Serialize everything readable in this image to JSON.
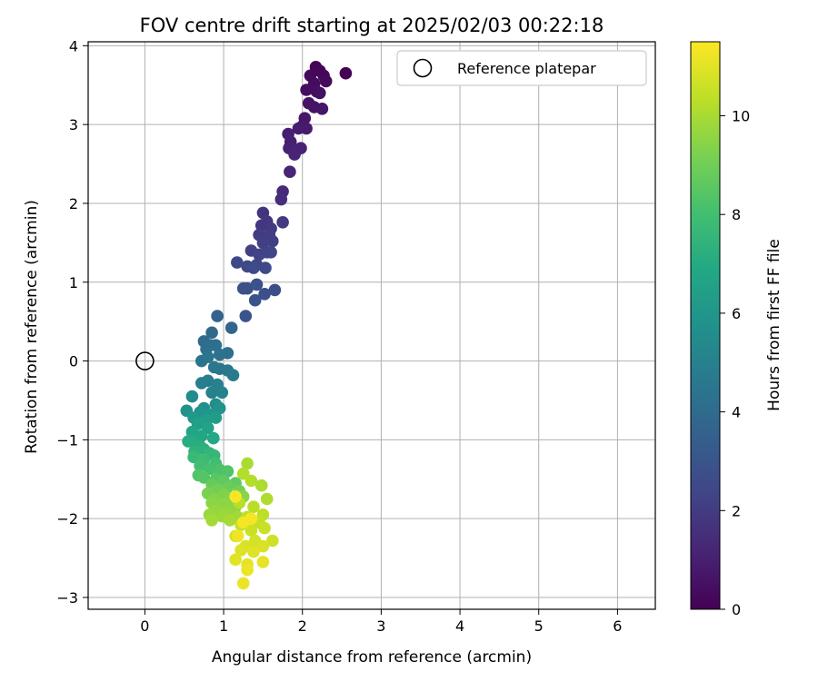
{
  "chart_data": {
    "type": "scatter",
    "title": "FOV centre drift starting at 2025/02/03 00:22:18",
    "xlabel": "Angular distance from reference (arcmin)",
    "ylabel": "Rotation from reference (arcmin)",
    "xlim": [
      -0.72,
      6.48
    ],
    "ylim": [
      -3.15,
      4.05
    ],
    "xticks": [
      0,
      1,
      2,
      3,
      4,
      5,
      6
    ],
    "yticks": [
      -3,
      -2,
      -1,
      0,
      1,
      2,
      3,
      4
    ],
    "grid": true,
    "legend": {
      "position": "top-right",
      "entries": [
        "Reference platepar"
      ]
    },
    "reference_point": {
      "x": 0,
      "y": 0,
      "label": "Reference platepar"
    },
    "colorbar": {
      "label": "Hours from first FF file",
      "range": [
        0,
        11.5
      ],
      "ticks": [
        0,
        2,
        4,
        6,
        8,
        10
      ],
      "colormap": "viridis"
    },
    "series": [
      {
        "points": [
          [
            2.55,
            3.65,
            0.05
          ],
          [
            2.17,
            3.73,
            0.1
          ],
          [
            2.22,
            3.68,
            0.15
          ],
          [
            2.27,
            3.62,
            0.2
          ],
          [
            2.1,
            3.62,
            0.25
          ],
          [
            2.3,
            3.55,
            0.3
          ],
          [
            2.15,
            3.52,
            0.35
          ],
          [
            2.05,
            3.44,
            0.4
          ],
          [
            2.18,
            3.42,
            0.45
          ],
          [
            2.22,
            3.4,
            0.5
          ],
          [
            2.08,
            3.27,
            0.55
          ],
          [
            2.15,
            3.22,
            0.6
          ],
          [
            2.25,
            3.2,
            0.65
          ],
          [
            2.03,
            3.08,
            0.7
          ],
          [
            2.0,
            2.98,
            0.8
          ],
          [
            2.05,
            2.95,
            0.85
          ],
          [
            1.95,
            2.95,
            0.9
          ],
          [
            1.82,
            2.88,
            0.95
          ],
          [
            1.85,
            2.78,
            1.0
          ],
          [
            1.83,
            2.7,
            1.05
          ],
          [
            1.98,
            2.7,
            1.1
          ],
          [
            1.9,
            2.62,
            1.15
          ],
          [
            1.84,
            2.4,
            1.2
          ],
          [
            1.75,
            2.15,
            1.4
          ],
          [
            1.73,
            2.05,
            1.5
          ],
          [
            1.5,
            1.88,
            1.7
          ],
          [
            1.55,
            1.77,
            1.8
          ],
          [
            1.48,
            1.72,
            1.85
          ],
          [
            1.6,
            1.68,
            1.9
          ],
          [
            1.75,
            1.76,
            1.95
          ],
          [
            1.45,
            1.6,
            2.0
          ],
          [
            1.58,
            1.6,
            2.05
          ],
          [
            1.62,
            1.52,
            2.1
          ],
          [
            1.5,
            1.5,
            2.15
          ],
          [
            1.35,
            1.4,
            2.2
          ],
          [
            1.55,
            1.38,
            2.25
          ],
          [
            1.45,
            1.35,
            2.3
          ],
          [
            1.6,
            1.38,
            2.35
          ],
          [
            1.42,
            1.22,
            2.4
          ],
          [
            1.53,
            1.18,
            2.45
          ],
          [
            1.3,
            1.2,
            2.5
          ],
          [
            1.17,
            1.25,
            2.55
          ],
          [
            1.38,
            1.18,
            2.6
          ],
          [
            1.65,
            0.9,
            2.7
          ],
          [
            1.52,
            0.85,
            2.75
          ],
          [
            1.25,
            0.92,
            2.8
          ],
          [
            1.3,
            0.92,
            2.85
          ],
          [
            1.42,
            0.97,
            2.9
          ],
          [
            1.4,
            0.77,
            2.95
          ],
          [
            1.28,
            0.57,
            3.0
          ],
          [
            0.92,
            0.57,
            3.6
          ],
          [
            1.1,
            0.42,
            3.7
          ],
          [
            0.85,
            0.36,
            3.9
          ],
          [
            0.75,
            0.25,
            4.0
          ],
          [
            0.83,
            0.2,
            4.1
          ],
          [
            0.9,
            0.2,
            4.15
          ],
          [
            0.78,
            0.15,
            4.2
          ],
          [
            1.05,
            0.1,
            4.25
          ],
          [
            0.95,
            0.08,
            4.3
          ],
          [
            0.72,
            0.0,
            4.4
          ],
          [
            0.8,
            0.05,
            4.45
          ],
          [
            0.95,
            -0.1,
            4.5
          ],
          [
            1.05,
            -0.12,
            4.55
          ],
          [
            0.88,
            -0.08,
            4.6
          ],
          [
            1.12,
            -0.18,
            4.7
          ],
          [
            0.8,
            -0.25,
            4.8
          ],
          [
            0.72,
            -0.28,
            4.85
          ],
          [
            0.92,
            -0.3,
            4.9
          ],
          [
            0.85,
            -0.4,
            5.0
          ],
          [
            0.98,
            -0.4,
            5.05
          ],
          [
            0.6,
            -0.45,
            5.5
          ],
          [
            0.9,
            -0.55,
            5.6
          ],
          [
            0.75,
            -0.6,
            5.7
          ],
          [
            0.95,
            -0.6,
            5.8
          ],
          [
            0.53,
            -0.63,
            5.85
          ],
          [
            0.7,
            -0.65,
            5.9
          ],
          [
            0.82,
            -0.68,
            6.0
          ],
          [
            0.62,
            -0.72,
            6.1
          ],
          [
            0.9,
            -0.72,
            6.3
          ],
          [
            0.78,
            -0.75,
            6.35
          ],
          [
            0.67,
            -0.8,
            6.5
          ],
          [
            0.8,
            -0.85,
            6.6
          ],
          [
            0.6,
            -0.9,
            6.7
          ],
          [
            0.72,
            -0.95,
            6.8
          ],
          [
            0.87,
            -0.98,
            6.9
          ],
          [
            0.6,
            -1.02,
            7.0
          ],
          [
            0.55,
            -1.02,
            7.1
          ],
          [
            0.7,
            -1.08,
            7.2
          ],
          [
            0.75,
            -1.12,
            7.3
          ],
          [
            0.63,
            -1.15,
            7.4
          ],
          [
            0.82,
            -1.17,
            7.5
          ],
          [
            0.88,
            -1.2,
            7.6
          ],
          [
            0.62,
            -1.22,
            7.7
          ],
          [
            0.75,
            -1.25,
            7.8
          ],
          [
            0.9,
            -1.3,
            7.9
          ],
          [
            0.7,
            -1.33,
            8.0
          ],
          [
            0.82,
            -1.37,
            8.1
          ],
          [
            0.95,
            -1.38,
            8.2
          ],
          [
            1.05,
            -1.4,
            8.3
          ],
          [
            0.68,
            -1.45,
            8.35
          ],
          [
            0.75,
            -1.48,
            8.4
          ],
          [
            0.9,
            -1.5,
            8.5
          ],
          [
            1.0,
            -1.52,
            8.6
          ],
          [
            1.15,
            -1.55,
            8.7
          ],
          [
            0.85,
            -1.57,
            8.8
          ],
          [
            1.05,
            -1.6,
            8.9
          ],
          [
            0.92,
            -1.63,
            9.0
          ],
          [
            1.2,
            -1.65,
            9.1
          ],
          [
            0.8,
            -1.68,
            9.2
          ],
          [
            1.0,
            -1.7,
            9.3
          ],
          [
            0.88,
            -1.75,
            9.35
          ],
          [
            1.1,
            -1.75,
            9.4
          ],
          [
            1.25,
            -1.72,
            9.45
          ],
          [
            0.85,
            -1.8,
            9.5
          ],
          [
            1.0,
            -1.82,
            9.55
          ],
          [
            1.15,
            -1.85,
            9.6
          ],
          [
            0.92,
            -1.9,
            9.65
          ],
          [
            1.05,
            -1.93,
            9.7
          ],
          [
            0.82,
            -1.95,
            9.75
          ],
          [
            0.98,
            -1.97,
            9.8
          ],
          [
            1.18,
            -1.98,
            9.85
          ],
          [
            0.85,
            -2.02,
            9.9
          ],
          [
            1.08,
            -2.02,
            9.95
          ],
          [
            1.3,
            -1.3,
            10.0
          ],
          [
            1.48,
            -1.58,
            10.05
          ],
          [
            1.55,
            -1.75,
            10.1
          ],
          [
            1.25,
            -1.43,
            10.15
          ],
          [
            1.35,
            -1.52,
            10.2
          ],
          [
            1.2,
            -1.8,
            10.25
          ],
          [
            1.38,
            -1.85,
            10.3
          ],
          [
            1.5,
            -1.95,
            10.35
          ],
          [
            1.3,
            -1.98,
            10.4
          ],
          [
            1.45,
            -2.05,
            10.45
          ],
          [
            1.22,
            -2.08,
            10.5
          ],
          [
            1.52,
            -2.12,
            10.55
          ],
          [
            1.35,
            -2.15,
            10.6
          ],
          [
            1.62,
            -2.28,
            10.65
          ],
          [
            1.15,
            -2.22,
            10.7
          ],
          [
            1.4,
            -2.28,
            10.75
          ],
          [
            1.28,
            -2.35,
            10.8
          ],
          [
            1.5,
            -2.35,
            10.85
          ],
          [
            1.22,
            -2.4,
            10.9
          ],
          [
            1.38,
            -2.42,
            10.95
          ],
          [
            1.15,
            -2.52,
            11.0
          ],
          [
            1.3,
            -2.58,
            11.05
          ],
          [
            1.5,
            -2.55,
            11.1
          ],
          [
            1.3,
            -2.65,
            11.15
          ],
          [
            1.25,
            -2.82,
            11.2
          ],
          [
            1.18,
            -2.22,
            11.25
          ],
          [
            1.25,
            -2.05,
            11.3
          ],
          [
            1.35,
            -2.0,
            11.35
          ],
          [
            1.15,
            -1.72,
            11.4
          ]
        ]
      }
    ]
  }
}
